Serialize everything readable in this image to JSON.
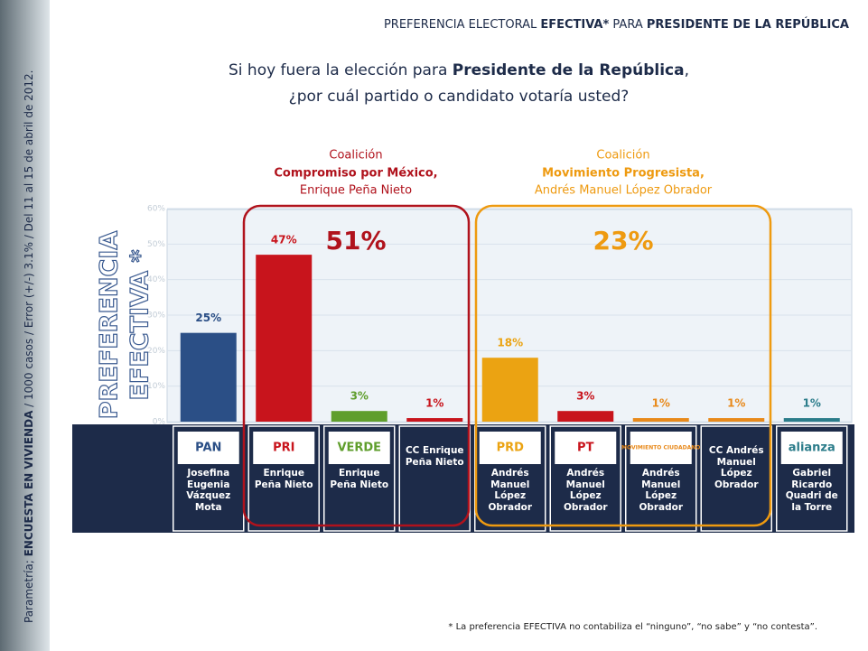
{
  "header": {
    "prefix": "PREFERENCIA ELECTORAL ",
    "bold1": "EFECTIVA*",
    "middle": " PARA ",
    "bold2": "PRESIDENTE DE LA REPÚBLICA"
  },
  "question": {
    "line1_start": "Si hoy fuera la elección para ",
    "line1_bold": "Presidente de la República",
    "line1_end": ",",
    "line2": "¿por cuál partido o candidato votaría usted?"
  },
  "side_note": {
    "start": "Parametría; ",
    "bold": "ENCUESTA EN VIVIENDA",
    "end": " / 1000 casos / Error (+/-) 3.1% / Del 11 al 15 de abril de 2012."
  },
  "footnote": "* La preferencia EFECTIVA no contabiliza el “ninguno”, “no sabe” y “no contesta”.",
  "chart_data": {
    "type": "bar",
    "y_label_lines": [
      "PREFERENCIA",
      "EFECTIVA *"
    ],
    "categories": [
      "Josefina Eugenia Vázquez Mota",
      "Enrique Peña Nieto",
      "Enrique Peña Nieto",
      "CC Enrique Peña Nieto",
      "Andrés Manuel López Obrador",
      "Andrés Manuel López Obrador",
      "Andrés Manuel López Obrador",
      "CC Andrés Manuel López Obrador",
      "Gabriel Ricardo Quadri de la Torre"
    ],
    "parties": [
      "PAN",
      "PRI",
      "VERDE",
      null,
      "PRD",
      "PT",
      "MOVIMIENTO CIUDADANO",
      null,
      "alianza"
    ],
    "values": [
      25,
      47,
      3,
      1,
      18,
      3,
      1,
      1,
      1
    ],
    "value_labels": [
      "25%",
      "47%",
      "3%",
      "1%",
      "18%",
      "3%",
      "1%",
      "1%",
      "1%"
    ],
    "colors": [
      "#2b4f86",
      "#c8141c",
      "#5f9e2c",
      "#c8141c",
      "#eba312",
      "#c8141c",
      "#e8891a",
      "#e8891a",
      "#2b7c8a"
    ],
    "ylim": [
      0,
      60
    ],
    "yticks": [
      {
        "value": 0,
        "label": "0%"
      },
      {
        "value": 10,
        "label": "10%"
      },
      {
        "value": 20,
        "label": "20%"
      },
      {
        "value": 30,
        "label": "30%"
      },
      {
        "value": 40,
        "label": "40%"
      },
      {
        "value": 50,
        "label": "50%"
      },
      {
        "value": 60,
        "label": "60%"
      }
    ],
    "groups": [
      {
        "label": "Coalición",
        "name": "Compromiso por México,",
        "candidate": "Enrique Peña Nieto",
        "value": 51,
        "value_label": "51%",
        "color": "#b0121c"
      },
      {
        "label": "Coalición",
        "name": "Movimiento Progresista,",
        "candidate": "Andrés Manuel López Obrador",
        "value": 23,
        "value_label": "23%",
        "color": "#ee9a10"
      }
    ]
  }
}
